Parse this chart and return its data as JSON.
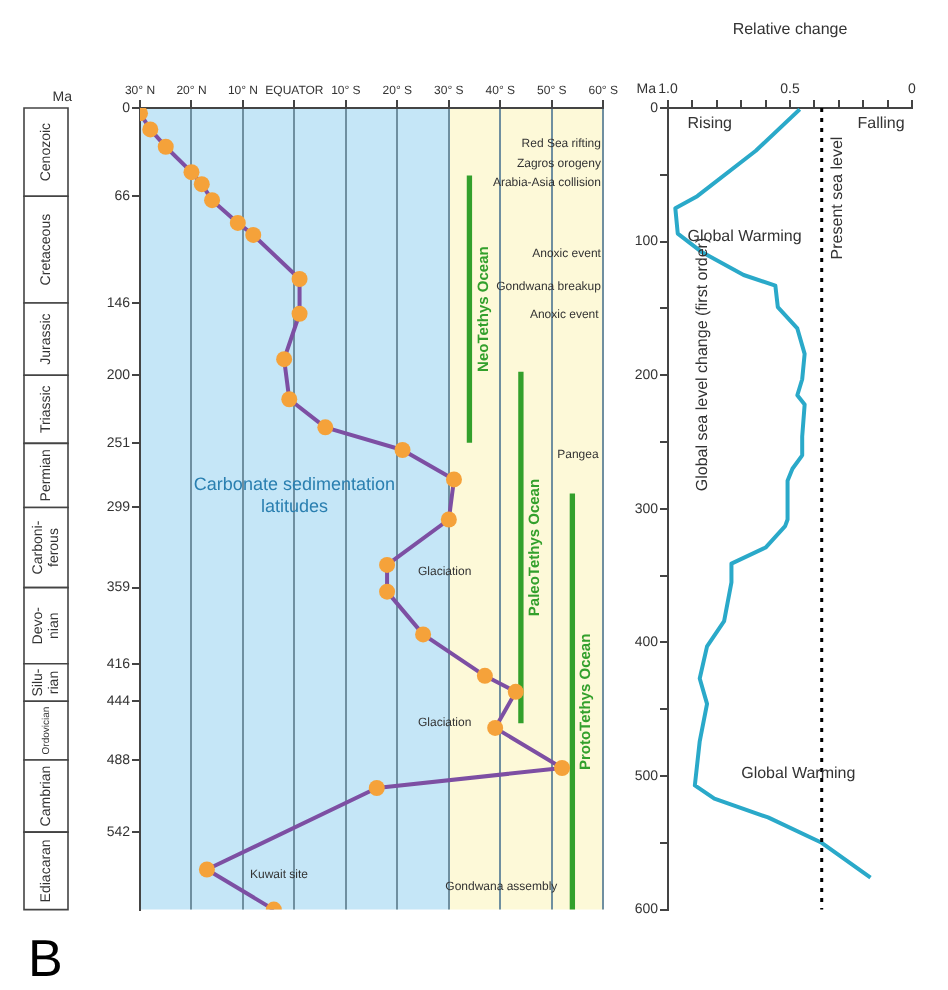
{
  "chart_data": [
    {
      "type": "line",
      "title": "B",
      "ylabel": "Ma",
      "x": [
        30,
        28,
        25,
        20,
        18,
        16,
        11,
        8,
        -1,
        -1,
        2,
        1,
        -6,
        -21,
        -31,
        -30,
        -18,
        -18,
        -25,
        -37,
        -43,
        -39,
        -52,
        -16,
        17,
        4
      ],
      "series": [
        {
          "color": "#7d4fa3",
          "colors": [
            "#f5a23a",
            "#f5a23a",
            "#f5a23a",
            "#f5a23a",
            "#f5a23a",
            "#f5a23a",
            "#f5a23a",
            "#f5a23a",
            "#f5a23a",
            "#f5a23a",
            "#f5a23a",
            "#f5a23a",
            "#f5a23a",
            "#f5a23a",
            "#f5a23a",
            "#f5a23a",
            "#f5a23a",
            "#f5a23a",
            "#f5a23a",
            "#f5a23a",
            "#f5a23a",
            "#f5a23a",
            "#f5a23a",
            "#f5a23a",
            "#f5a23a",
            "#f5a23a"
          ],
          "values": [
            4,
            16,
            29,
            48,
            57,
            69,
            86,
            95,
            128,
            154,
            188,
            218,
            239,
            256,
            278,
            308,
            342,
            362,
            394,
            425,
            437,
            464,
            494,
            509,
            570,
            600
          ]
        },
        {
          "type": "bar",
          "name": "NeoTethys Ocean",
          "color": "#33a02c",
          "x": [
            -34
          ],
          "base": [
            51
          ],
          "values": [
            199
          ]
        },
        {
          "type": "bar",
          "name": "PaleoTethys Ocean",
          "color": "#33a02c",
          "x": [
            -44
          ],
          "base": [
            198
          ],
          "values": [
            262
          ]
        },
        {
          "type": "bar",
          "name": "ProtoTethys Ocean",
          "color": "#33a02c",
          "x": [
            -54
          ],
          "base": [
            289
          ],
          "values": [
            311
          ]
        }
      ],
      "xlim": [
        30,
        -60
      ],
      "xticks": [
        {
          "value": 30,
          "label": "30° N"
        },
        {
          "value": 20,
          "label": "20° N"
        },
        {
          "value": 10,
          "label": "10° N"
        },
        {
          "value": 0,
          "label": "EQUATOR"
        },
        {
          "value": -10,
          "label": "10° S"
        },
        {
          "value": -20,
          "label": "20° S"
        },
        {
          "value": -30,
          "label": "30° S"
        },
        {
          "value": -40,
          "label": "40° S"
        },
        {
          "value": -50,
          "label": "50° S"
        },
        {
          "value": -60,
          "label": "60° S"
        }
      ],
      "ylim": [
        600,
        0
      ],
      "yticks": [
        0,
        66,
        146,
        200,
        251,
        299,
        359,
        416,
        444,
        488,
        542
      ],
      "grid": "x",
      "marker": "circle",
      "line_style": "solid",
      "bands": [
        {
          "axis": "x",
          "from": 30,
          "to": -30,
          "label": "Carbonate sedimentation latitudes",
          "color": "#c5e6f7"
        },
        {
          "axis": "x",
          "from": -30,
          "to": -60,
          "color": "#fdf9d8"
        }
      ],
      "annotations": [
        "Red Sea rifting",
        "Zagros orogeny",
        "Arabia-Asia collision",
        "Anoxic event",
        "Gondwana breakup",
        "Anoxic event",
        "Pangea",
        "Glaciation",
        "Glaciation",
        "Kuwait site",
        "Gondwana assembly",
        "Cenozoic",
        "Cretaceous",
        "Jurassic",
        "Triassic",
        "Permian",
        "Carboni-ferous",
        "Devo-nian",
        "Silu-rian",
        "Ordovician",
        "Cambrian",
        "Ediacaran"
      ]
    },
    {
      "type": "line",
      "xlabel": "Relative change",
      "ylabel": "Ma",
      "x": [
        0.46,
        0.64,
        0.88,
        0.97,
        0.96,
        0.86,
        0.69,
        0.56,
        0.55,
        0.47,
        0.44,
        0.45,
        0.47,
        0.44,
        0.45,
        0.45,
        0.49,
        0.51,
        0.51,
        0.52,
        0.6,
        0.74,
        0.74,
        0.77,
        0.84,
        0.87,
        0.84,
        0.87,
        0.89,
        0.81,
        0.59,
        0.37,
        0.17
      ],
      "series": [
        {
          "color": "#2aa9c9",
          "values": [
            1,
            32,
            66,
            75,
            94,
            108,
            125,
            133,
            149,
            165,
            184,
            203,
            215,
            222,
            246,
            260,
            270,
            279,
            308,
            313,
            329,
            341,
            355,
            384,
            403,
            427,
            446,
            474,
            507,
            517,
            531,
            550,
            576
          ]
        }
      ],
      "xlim": [
        1,
        0
      ],
      "xticks": [
        {
          "value": 1,
          "label": "1.0"
        },
        {
          "value": 0.9,
          "label": null
        },
        {
          "value": 0.8,
          "label": null
        },
        {
          "value": 0.7,
          "label": null
        },
        {
          "value": 0.6,
          "label": null
        },
        0.5,
        {
          "value": 0.4,
          "label": null
        },
        {
          "value": 0.3,
          "label": null
        },
        {
          "value": 0.2,
          "label": null
        },
        {
          "value": 0.1,
          "label": null
        },
        0
      ],
      "ylim": [
        600,
        0
      ],
      "yticks": [
        0,
        {
          "value": 50,
          "label": null
        },
        100,
        {
          "value": 150,
          "label": null
        },
        200,
        {
          "value": 250,
          "label": null
        },
        300,
        {
          "value": 350,
          "label": null
        },
        400,
        {
          "value": 450,
          "label": null
        },
        500,
        {
          "value": 550,
          "label": null
        },
        600
      ],
      "marker": "none",
      "line_style": "solid",
      "ref_lines": [
        {
          "axis": "x",
          "value": 0.37,
          "label": "Present sea level",
          "color": "#000000",
          "line_style": "dotted"
        }
      ],
      "annotations": [
        "Rising",
        "Falling",
        "Global Warming",
        "Global sea level change (first order)",
        "Global Warming"
      ]
    }
  ]
}
